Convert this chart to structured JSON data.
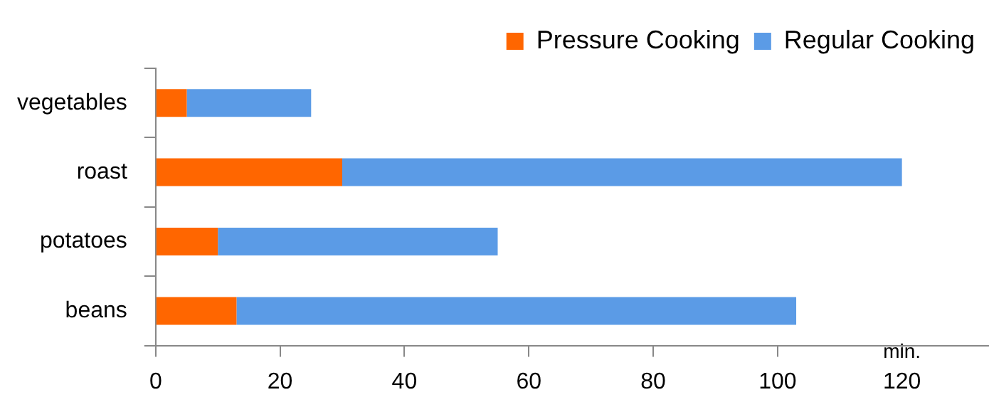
{
  "chart_data": {
    "type": "bar",
    "orientation": "horizontal",
    "stacked": true,
    "xlabel": "min.",
    "categories": [
      "vegetables",
      "roast",
      "potatoes",
      "beans"
    ],
    "series": [
      {
        "name": "Pressure Cooking",
        "color": "#ff6600",
        "values": [
          5,
          30,
          10,
          13
        ]
      },
      {
        "name": "Regular Cooking",
        "color": "#5b9be6",
        "values": [
          20,
          90,
          45,
          90
        ]
      }
    ],
    "xlim": [
      0,
      134
    ],
    "xticks": [
      0,
      20,
      40,
      60,
      80,
      100,
      120
    ],
    "grid": false,
    "legend": "top right"
  }
}
